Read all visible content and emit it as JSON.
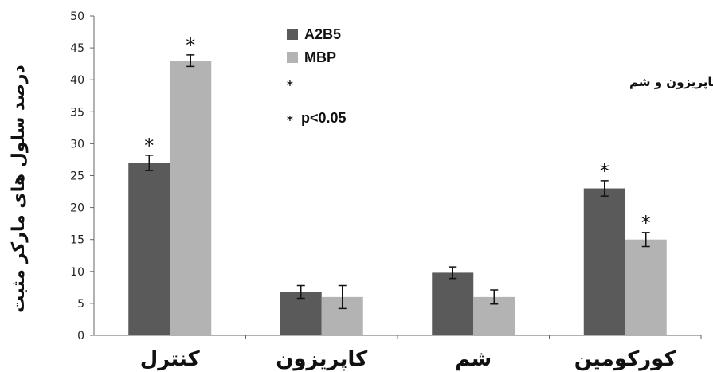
{
  "chart_data": {
    "type": "bar",
    "title": "",
    "xlabel": "",
    "ylabel": "درصد سلول های مارکر مثبت",
    "ylim": [
      0,
      50
    ],
    "yticks": [
      0,
      5,
      10,
      15,
      20,
      25,
      30,
      35,
      40,
      45,
      50
    ],
    "categories": [
      "کنترل",
      "کاپریزون",
      "شم",
      "کورکومین"
    ],
    "series": [
      {
        "name": "A2B5",
        "color": "#5a5a5a",
        "values": [
          27,
          6.8,
          9.8,
          23
        ],
        "errors": [
          1.2,
          1.0,
          0.9,
          1.2
        ],
        "significant": [
          true,
          false,
          false,
          true
        ]
      },
      {
        "name": "MBP",
        "color": "#b3b3b3",
        "values": [
          43,
          6,
          6,
          15
        ],
        "errors": [
          0.9,
          1.8,
          1.1,
          1.1
        ],
        "significant": [
          true,
          false,
          false,
          true
        ]
      }
    ],
    "legend": {
      "position": "top-center",
      "notes": [
        "در مقایسه با گروه های کاپریزون و شم",
        "p<0.05"
      ],
      "note_symbol": "*"
    },
    "significance_marker": "*",
    "grid": false
  }
}
